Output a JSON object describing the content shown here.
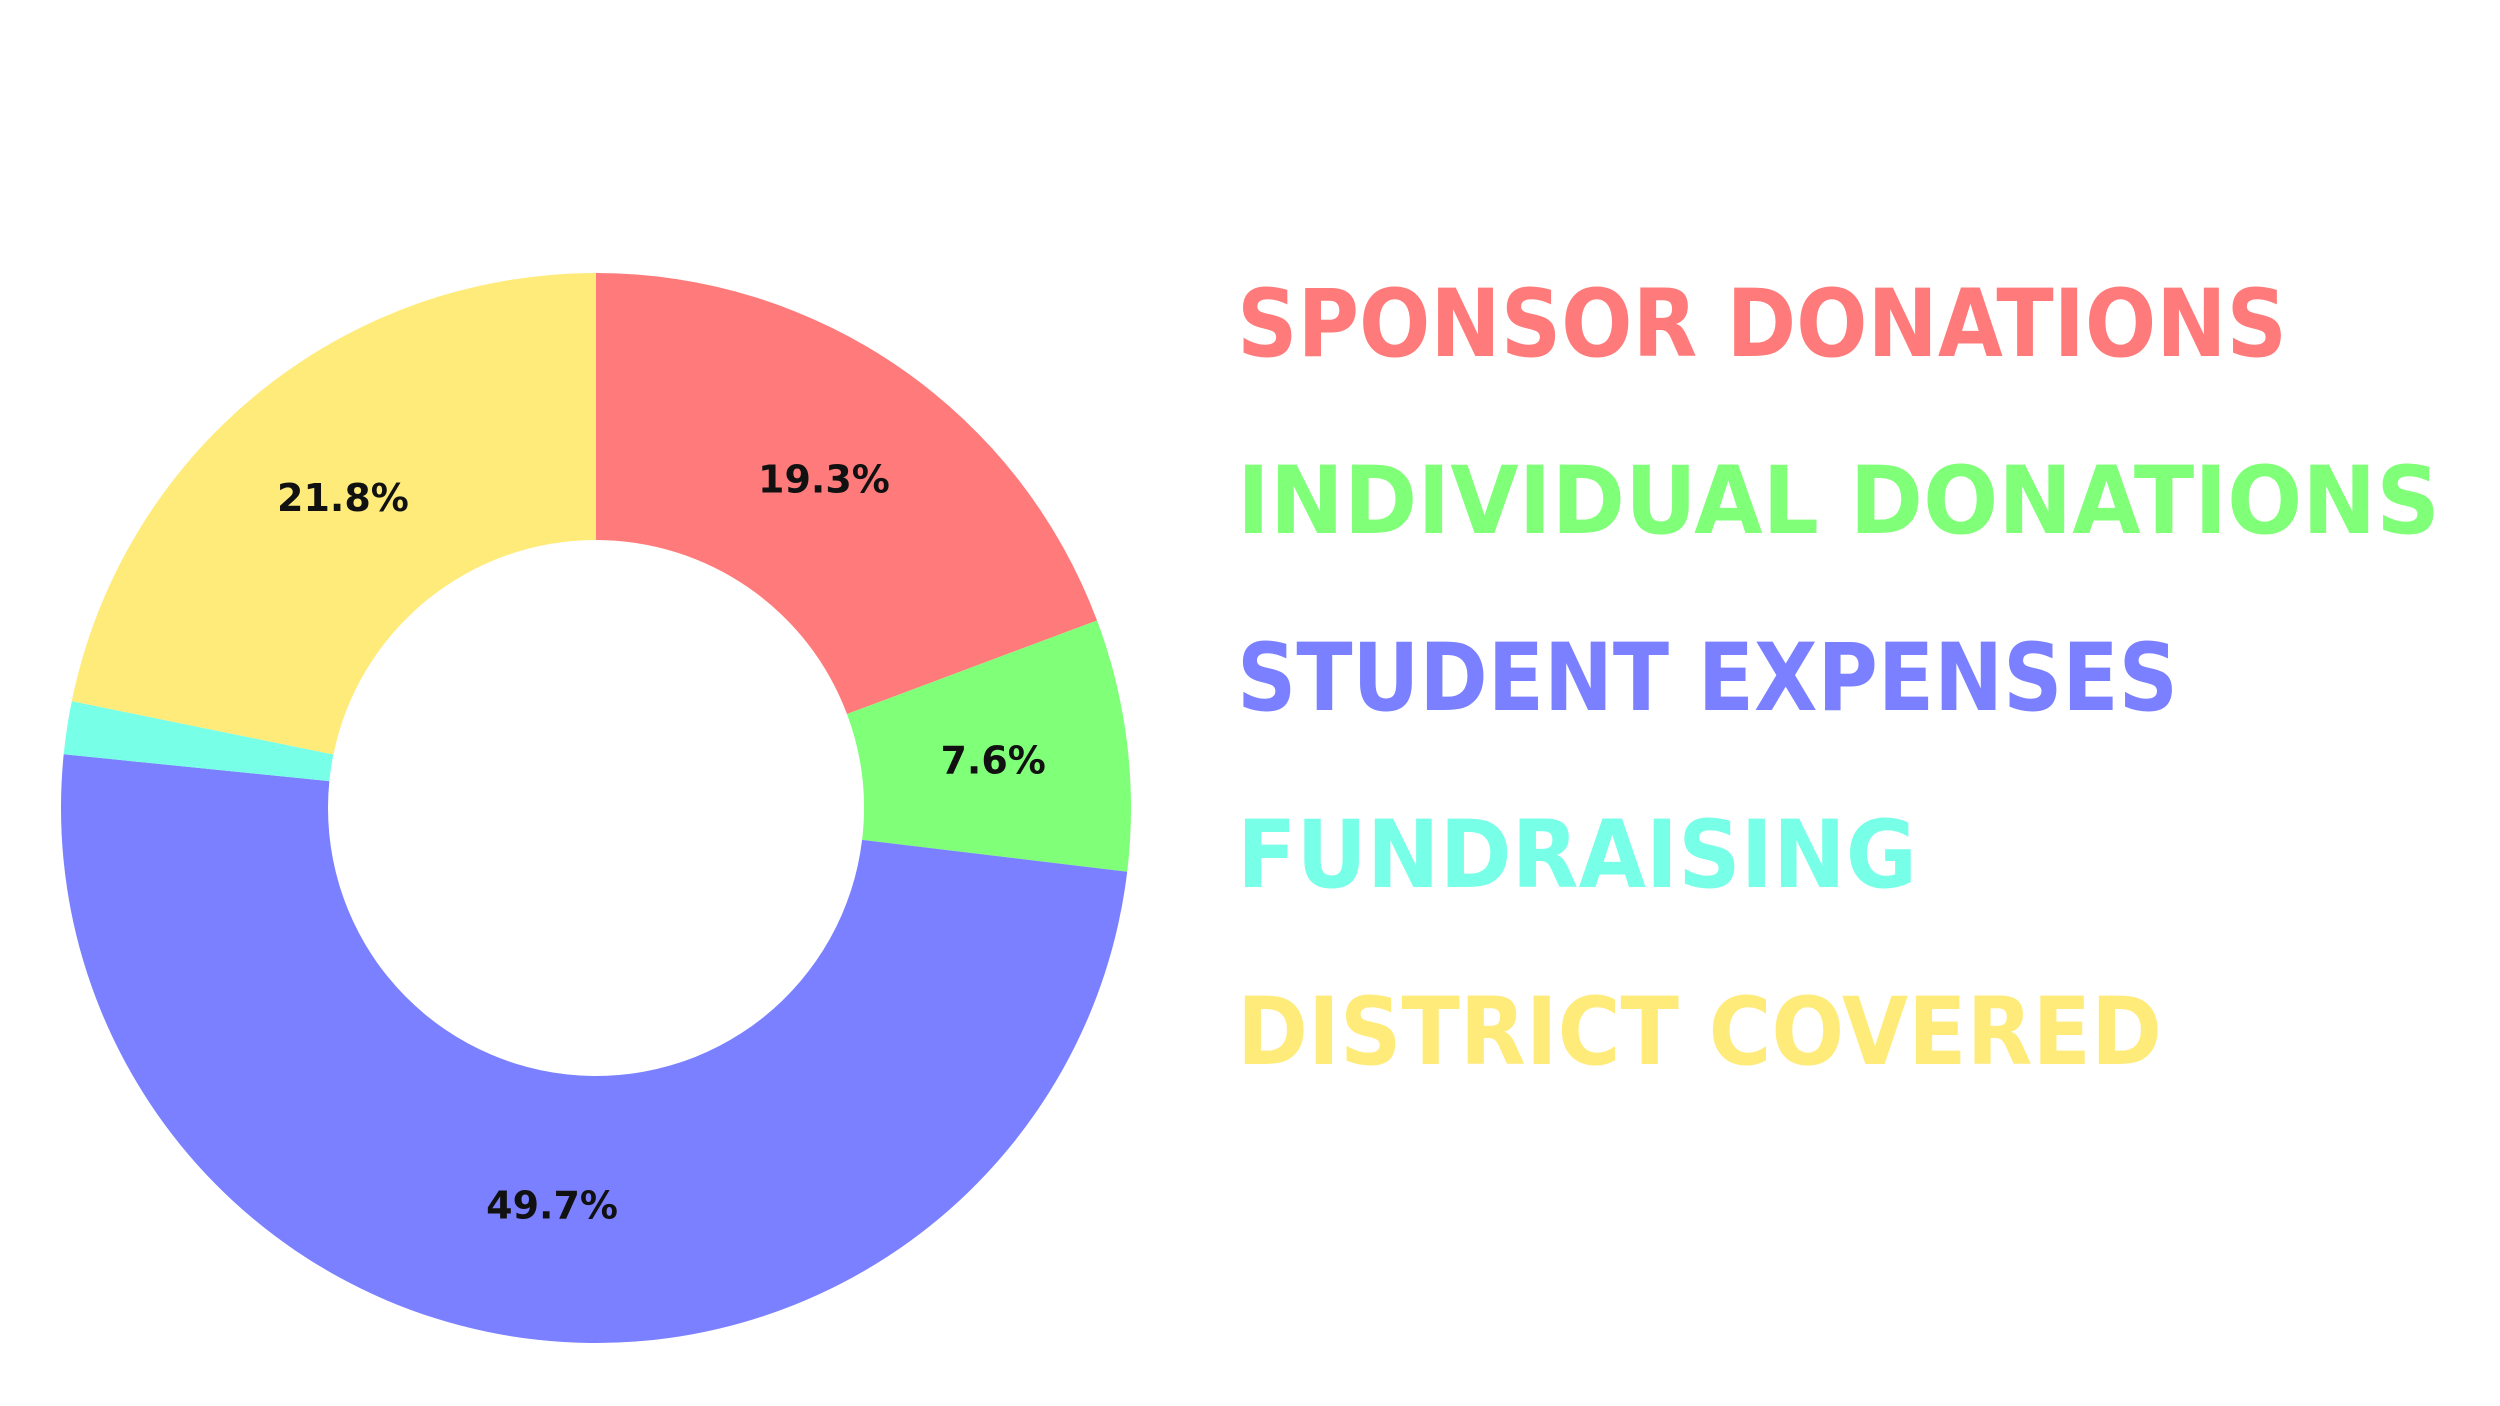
{
  "chart_data": {
    "type": "pie",
    "variant": "donut",
    "start": "top, clockwise",
    "legend_position": "right",
    "categories": [
      "SPONSOR DONATIONS",
      "INDIVIDUAL DONATIONS",
      "STUDENT EXPENSES",
      "FUNDRAISING",
      "DISTRICT COVERED"
    ],
    "values": [
      19.3,
      7.6,
      49.7,
      1.6,
      21.8
    ],
    "data_labels": [
      "19.3%",
      "7.6%",
      "49.7%",
      "",
      "21.8%"
    ],
    "colors": [
      "#ff7a7a",
      "#80ff78",
      "#7a80ff",
      "#78ffe8",
      "#ffeb7a"
    ]
  }
}
